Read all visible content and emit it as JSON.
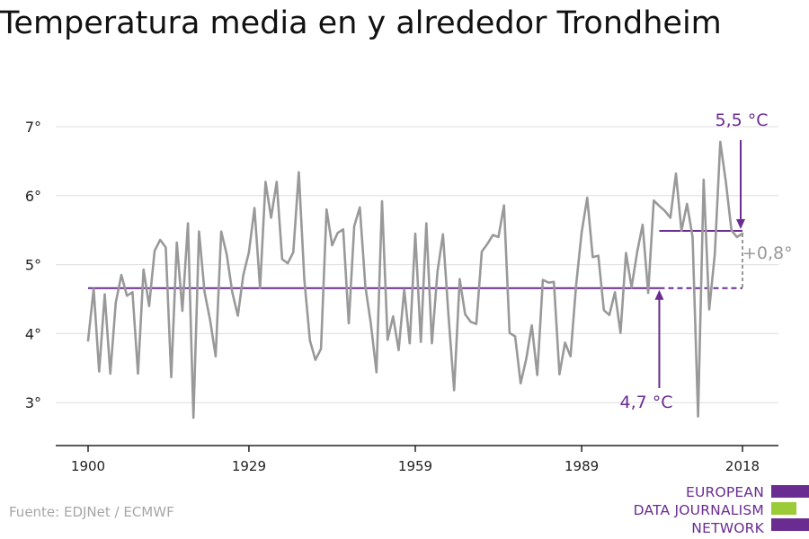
{
  "title": "Temperatura media en y alrededor Trondheim",
  "source": "Fuente: EDJNet / ECMWF",
  "logo": {
    "lines": [
      "EUROPEAN",
      "DATA JOURNALISM",
      "NETWORK"
    ],
    "colors": [
      "#6a2c91",
      "#9ccb38",
      "#6a2c91"
    ]
  },
  "colors": {
    "series": "#999999",
    "reference": "#6a2c91",
    "grid": "#dddddd",
    "axis": "#222222",
    "diff": "#999999"
  },
  "chart_data": {
    "type": "line",
    "title": "Temperatura media en y alrededor Trondheim",
    "xlabel": "",
    "ylabel": "",
    "xlim": [
      1900,
      2018
    ],
    "ylim": [
      2.5,
      7.5
    ],
    "x_ticks": [
      1900,
      1929,
      1959,
      1989,
      2018
    ],
    "y_ticks": [
      3,
      4,
      5,
      6,
      7
    ],
    "y_tick_labels": [
      "3°",
      "4°",
      "5°",
      "6°",
      "7°"
    ],
    "grid": true,
    "series": [
      {
        "x_start": 1900,
        "values": [
          3.9,
          4.65,
          3.45,
          4.57,
          3.42,
          4.45,
          4.85,
          4.55,
          4.6,
          3.42,
          4.93,
          4.4,
          5.2,
          5.36,
          5.25,
          3.37,
          5.32,
          4.33,
          5.6,
          2.78,
          5.48,
          4.6,
          4.2,
          3.67,
          5.48,
          5.15,
          4.6,
          4.26,
          4.85,
          5.18,
          5.82,
          4.66,
          6.2,
          5.68,
          6.2,
          5.08,
          5.02,
          5.18,
          6.34,
          4.78,
          3.9,
          3.62,
          3.78,
          5.8,
          5.28,
          5.46,
          5.51,
          4.15,
          5.56,
          5.83,
          4.68,
          4.14,
          3.44,
          5.92,
          3.91,
          4.25,
          3.76,
          4.64,
          3.86,
          5.45,
          3.88,
          5.6,
          3.86,
          4.9,
          5.44,
          4.25,
          3.18,
          4.79,
          4.28,
          4.17,
          4.14,
          5.19,
          5.3,
          5.43,
          5.4,
          5.86,
          4.01,
          3.96,
          3.28,
          3.63,
          4.12,
          3.4,
          4.78,
          4.74,
          4.75,
          3.41,
          3.87,
          3.67,
          4.7,
          5.47,
          5.97,
          5.11,
          5.13,
          4.34,
          4.27,
          4.6,
          4.01,
          5.17,
          4.67,
          5.18,
          5.58,
          4.59,
          5.93,
          5.85,
          5.78,
          5.68,
          6.32,
          5.49,
          5.88,
          5.4,
          2.8,
          6.23,
          4.35,
          5.15,
          6.78,
          6.2,
          5.5,
          5.4,
          5.45
        ]
      }
    ],
    "reference_lines": [
      {
        "from": 1900,
        "to": 2018,
        "y": 4.66,
        "dashed_from": 2003
      },
      {
        "from": 2003,
        "to": 2018,
        "y": 5.49
      }
    ],
    "annotations": [
      {
        "text": "5,5 °C",
        "x": 2018,
        "y": 5.49,
        "arrow": "down"
      },
      {
        "text": "4,7 °C",
        "x": 2003,
        "y": 4.66,
        "arrow": "up"
      },
      {
        "text": "+0,8°",
        "x": 2018,
        "y": 5.08
      }
    ]
  }
}
